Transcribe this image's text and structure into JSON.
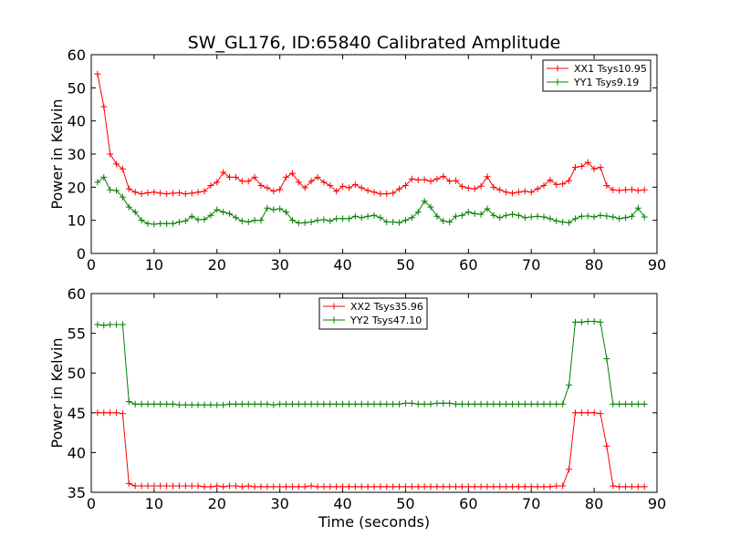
{
  "chart_data": [
    {
      "type": "line",
      "title": "SW_GL176, ID:65840 Calibrated Amplitude",
      "xlabel": "",
      "ylabel": "Power in Kelvin",
      "xlim": [
        0,
        90
      ],
      "ylim": [
        0,
        60
      ],
      "xticks": [
        "0",
        "10",
        "20",
        "30",
        "40",
        "50",
        "60",
        "70",
        "80",
        "90"
      ],
      "yticks": [
        "0",
        "10",
        "20",
        "30",
        "40",
        "50",
        "60"
      ],
      "legend_position": "top-right",
      "grid": false,
      "series": [
        {
          "name": "XX1 Tsys10.95",
          "color": "#ff0000",
          "x": [
            1,
            2,
            3,
            4,
            5,
            6,
            7,
            8,
            9,
            10,
            11,
            12,
            13,
            14,
            15,
            16,
            17,
            18,
            19,
            20,
            21,
            22,
            23,
            24,
            25,
            26,
            27,
            28,
            29,
            30,
            31,
            32,
            33,
            34,
            35,
            36,
            37,
            38,
            39,
            40,
            41,
            42,
            43,
            44,
            45,
            46,
            47,
            48,
            49,
            50,
            51,
            52,
            53,
            54,
            55,
            56,
            57,
            58,
            59,
            60,
            61,
            62,
            63,
            64,
            65,
            66,
            67,
            68,
            69,
            70,
            71,
            72,
            73,
            74,
            75,
            76,
            77,
            78,
            79,
            80,
            81,
            82,
            83,
            84,
            85,
            86,
            87,
            88
          ],
          "values": [
            54.2,
            44.3,
            30.0,
            27.0,
            25.5,
            19.5,
            18.5,
            18.0,
            18.3,
            18.5,
            18.2,
            18.0,
            18.2,
            18.3,
            18.0,
            18.2,
            18.5,
            18.8,
            20.5,
            21.5,
            24.5,
            23.0,
            23.0,
            21.8,
            21.8,
            23.0,
            20.5,
            19.8,
            18.8,
            19.3,
            23.0,
            24.2,
            21.5,
            19.8,
            21.8,
            23.0,
            21.5,
            20.5,
            18.8,
            20.3,
            19.8,
            20.8,
            19.8,
            19.0,
            18.5,
            18.0,
            18.0,
            18.2,
            19.5,
            20.5,
            22.5,
            22.2,
            22.3,
            21.8,
            22.5,
            23.3,
            21.8,
            22.0,
            20.2,
            19.7,
            19.5,
            20.3,
            23.2,
            20.0,
            19.2,
            18.5,
            18.2,
            18.5,
            18.8,
            18.5,
            19.5,
            20.5,
            22.2,
            20.8,
            21.0,
            22.0,
            26.0,
            26.3,
            27.5,
            25.5,
            26.0,
            20.5,
            19.2,
            19.0,
            19.2,
            19.3,
            19.0,
            19.2
          ]
        },
        {
          "name": "YY1 Tsys9.19",
          "color": "#008000",
          "x": [
            1,
            2,
            3,
            4,
            5,
            6,
            7,
            8,
            9,
            10,
            11,
            12,
            13,
            14,
            15,
            16,
            17,
            18,
            19,
            20,
            21,
            22,
            23,
            24,
            25,
            26,
            27,
            28,
            29,
            30,
            31,
            32,
            33,
            34,
            35,
            36,
            37,
            38,
            39,
            40,
            41,
            42,
            43,
            44,
            45,
            46,
            47,
            48,
            49,
            50,
            51,
            52,
            53,
            54,
            55,
            56,
            57,
            58,
            59,
            60,
            61,
            62,
            63,
            64,
            65,
            66,
            67,
            68,
            69,
            70,
            71,
            72,
            73,
            74,
            75,
            76,
            77,
            78,
            79,
            80,
            81,
            82,
            83,
            84,
            85,
            86,
            87,
            88
          ],
          "values": [
            21.5,
            23.0,
            19.2,
            19.0,
            17.0,
            14.0,
            12.5,
            10.0,
            9.0,
            8.8,
            9.0,
            9.0,
            9.0,
            9.5,
            9.8,
            11.2,
            10.2,
            10.3,
            11.5,
            13.2,
            12.5,
            12.0,
            10.8,
            9.8,
            9.5,
            10.0,
            10.0,
            13.7,
            13.2,
            13.5,
            12.5,
            10.0,
            9.2,
            9.3,
            9.5,
            10.0,
            10.2,
            9.8,
            10.5,
            10.5,
            10.5,
            11.2,
            10.8,
            11.2,
            11.5,
            10.8,
            9.5,
            9.5,
            9.3,
            10.0,
            10.8,
            12.5,
            15.8,
            14.0,
            11.2,
            9.8,
            9.5,
            11.2,
            11.5,
            12.5,
            12.0,
            11.8,
            13.5,
            11.5,
            10.8,
            11.5,
            11.8,
            11.5,
            10.8,
            11.0,
            11.2,
            11.0,
            10.5,
            9.8,
            9.5,
            9.3,
            10.5,
            11.2,
            11.3,
            11.0,
            11.5,
            11.3,
            11.0,
            10.5,
            10.8,
            11.2,
            13.7,
            11.0
          ]
        }
      ]
    },
    {
      "type": "line",
      "title": "",
      "xlabel": "Time (seconds)",
      "ylabel": "Power in Kelvin",
      "xlim": [
        0,
        90
      ],
      "ylim": [
        35,
        60
      ],
      "xticks": [
        "0",
        "10",
        "20",
        "30",
        "40",
        "50",
        "60",
        "70",
        "80",
        "90"
      ],
      "yticks": [
        "35",
        "40",
        "45",
        "50",
        "55",
        "60"
      ],
      "legend_position": "top-center",
      "grid": false,
      "series": [
        {
          "name": "XX2 Tsys35.96",
          "color": "#ff0000",
          "x": [
            1,
            2,
            3,
            4,
            5,
            6,
            7,
            8,
            9,
            10,
            11,
            12,
            13,
            14,
            15,
            16,
            17,
            18,
            19,
            20,
            21,
            22,
            23,
            24,
            25,
            26,
            27,
            28,
            29,
            30,
            31,
            32,
            33,
            34,
            35,
            36,
            37,
            38,
            39,
            40,
            41,
            42,
            43,
            44,
            45,
            46,
            47,
            48,
            49,
            50,
            51,
            52,
            53,
            54,
            55,
            56,
            57,
            58,
            59,
            60,
            61,
            62,
            63,
            64,
            65,
            66,
            67,
            68,
            69,
            70,
            71,
            72,
            73,
            74,
            75,
            76,
            77,
            78,
            79,
            80,
            81,
            82,
            83,
            84,
            85,
            86,
            87,
            88
          ],
          "values": [
            45.0,
            45.0,
            45.0,
            45.0,
            44.9,
            36.1,
            35.8,
            35.8,
            35.8,
            35.8,
            35.8,
            35.8,
            35.8,
            35.8,
            35.8,
            35.8,
            35.8,
            35.7,
            35.7,
            35.8,
            35.7,
            35.8,
            35.8,
            35.7,
            35.8,
            35.7,
            35.7,
            35.7,
            35.7,
            35.7,
            35.7,
            35.7,
            35.7,
            35.7,
            35.8,
            35.7,
            35.7,
            35.7,
            35.7,
            35.7,
            35.7,
            35.7,
            35.7,
            35.7,
            35.7,
            35.7,
            35.7,
            35.7,
            35.7,
            35.7,
            35.7,
            35.7,
            35.7,
            35.7,
            35.7,
            35.7,
            35.7,
            35.7,
            35.7,
            35.7,
            35.7,
            35.7,
            35.7,
            35.7,
            35.7,
            35.7,
            35.7,
            35.7,
            35.7,
            35.7,
            35.7,
            35.7,
            35.7,
            35.8,
            35.8,
            37.9,
            45.0,
            45.0,
            45.0,
            45.0,
            44.9,
            40.8,
            35.8,
            35.7,
            35.7,
            35.7,
            35.7,
            35.7
          ]
        },
        {
          "name": "YY2 Tsys47.10",
          "color": "#008000",
          "x": [
            1,
            2,
            3,
            4,
            5,
            6,
            7,
            8,
            9,
            10,
            11,
            12,
            13,
            14,
            15,
            16,
            17,
            18,
            19,
            20,
            21,
            22,
            23,
            24,
            25,
            26,
            27,
            28,
            29,
            30,
            31,
            32,
            33,
            34,
            35,
            36,
            37,
            38,
            39,
            40,
            41,
            42,
            43,
            44,
            45,
            46,
            47,
            48,
            49,
            50,
            51,
            52,
            53,
            54,
            55,
            56,
            57,
            58,
            59,
            60,
            61,
            62,
            63,
            64,
            65,
            66,
            67,
            68,
            69,
            70,
            71,
            72,
            73,
            74,
            75,
            76,
            77,
            78,
            79,
            80,
            81,
            82,
            83,
            84,
            85,
            86,
            87,
            88
          ],
          "values": [
            56.1,
            56.0,
            56.1,
            56.1,
            56.1,
            46.4,
            46.1,
            46.1,
            46.1,
            46.1,
            46.1,
            46.1,
            46.1,
            46.0,
            46.0,
            46.0,
            46.0,
            46.0,
            46.0,
            46.0,
            46.0,
            46.1,
            46.1,
            46.1,
            46.1,
            46.1,
            46.1,
            46.1,
            46.0,
            46.1,
            46.1,
            46.1,
            46.1,
            46.1,
            46.1,
            46.1,
            46.1,
            46.1,
            46.1,
            46.1,
            46.1,
            46.1,
            46.1,
            46.1,
            46.1,
            46.1,
            46.1,
            46.1,
            46.1,
            46.2,
            46.2,
            46.1,
            46.1,
            46.1,
            46.2,
            46.2,
            46.2,
            46.1,
            46.1,
            46.1,
            46.1,
            46.1,
            46.1,
            46.1,
            46.1,
            46.1,
            46.1,
            46.1,
            46.1,
            46.1,
            46.1,
            46.1,
            46.1,
            46.1,
            46.1,
            48.5,
            56.4,
            56.4,
            56.5,
            56.5,
            56.4,
            51.8,
            46.1,
            46.1,
            46.1,
            46.1,
            46.1,
            46.1
          ]
        }
      ]
    }
  ]
}
